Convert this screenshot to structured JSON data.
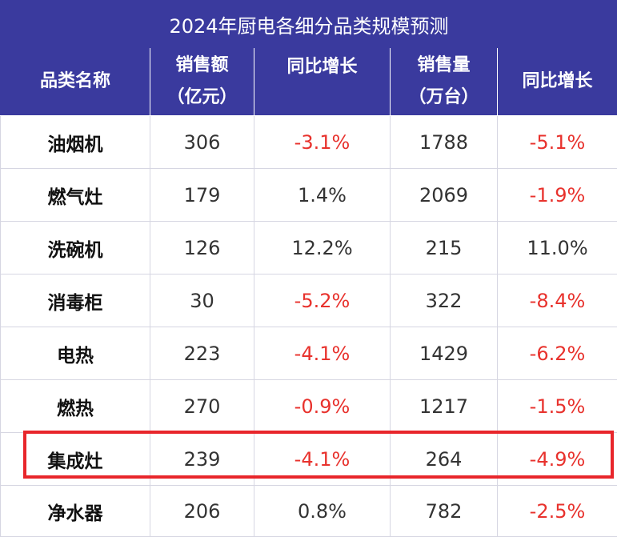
{
  "chart_data": {
    "type": "table",
    "title": "2024年厨电各细分品类规模预测",
    "columns": [
      {
        "label_line1": "品类名称",
        "label_line2": ""
      },
      {
        "label_line1": "销售额",
        "label_line2": "（亿元）"
      },
      {
        "label_line1": "同比增长",
        "label_line2": ""
      },
      {
        "label_line1": "销售量",
        "label_line2": "（万台）"
      },
      {
        "label_line1": "同比增长",
        "label_line2": ""
      }
    ],
    "rows": [
      {
        "category": "油烟机",
        "sales": "306",
        "sales_yoy": "-3.1%",
        "volume": "1788",
        "volume_yoy": "-5.1%"
      },
      {
        "category": "燃气灶",
        "sales": "179",
        "sales_yoy": "1.4%",
        "volume": "2069",
        "volume_yoy": "-1.9%"
      },
      {
        "category": "洗碗机",
        "sales": "126",
        "sales_yoy": "12.2%",
        "volume": "215",
        "volume_yoy": "11.0%"
      },
      {
        "category": "消毒柜",
        "sales": "30",
        "sales_yoy": "-5.2%",
        "volume": "322",
        "volume_yoy": "-8.4%"
      },
      {
        "category": "电热",
        "sales": "223",
        "sales_yoy": "-4.1%",
        "volume": "1429",
        "volume_yoy": "-6.2%"
      },
      {
        "category": "燃热",
        "sales": "270",
        "sales_yoy": "-0.9%",
        "volume": "1217",
        "volume_yoy": "-1.5%"
      },
      {
        "category": "集成灶",
        "sales": "239",
        "sales_yoy": "-4.1%",
        "volume": "264",
        "volume_yoy": "-4.9%"
      },
      {
        "category": "净水器",
        "sales": "206",
        "sales_yoy": "0.8%",
        "volume": "782",
        "volume_yoy": "-2.5%"
      }
    ],
    "highlighted_row": 6
  },
  "colors": {
    "header_bg": "#3a3a9e",
    "header_text": "#ffffff",
    "negative_text": "#e8322d",
    "normal_text": "#333333",
    "highlight_border": "#e8262b"
  }
}
